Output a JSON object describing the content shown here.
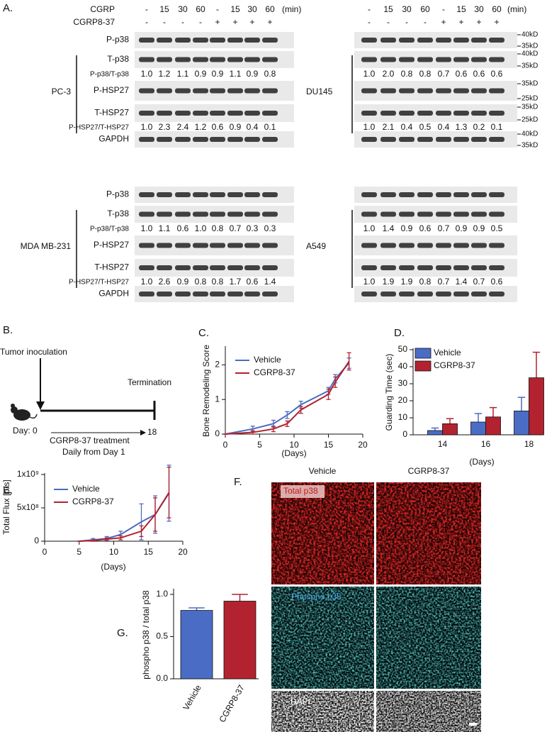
{
  "figure_a": {
    "label": "A.",
    "treatments": [
      {
        "name": "CGRP",
        "values": [
          "-",
          "15",
          "30",
          "60",
          "-",
          "15",
          "30",
          "60"
        ],
        "unit": "(min)"
      },
      {
        "name": "CGRP8-37",
        "values": [
          "-",
          "-",
          "-",
          "-",
          "+",
          "+",
          "+",
          "+"
        ]
      }
    ],
    "row_labels": [
      "P-p38",
      "T-p38",
      "P-p38/T-p38",
      "P-HSP27",
      "T-HSP27",
      "P-HSP27/T-HSP27",
      "GAPDH"
    ],
    "cell_lines": [
      {
        "name": "PC-3",
        "p38_ratio": [
          "1.0",
          "1.2",
          "1.1",
          "0.9",
          "0.9",
          "1.1",
          "0.9",
          "0.8"
        ],
        "hsp27_ratio": [
          "1.0",
          "2.3",
          "2.4",
          "1.2",
          "0.6",
          "0.9",
          "0.4",
          "0.1"
        ]
      },
      {
        "name": "DU145",
        "p38_ratio": [
          "1.0",
          "2.0",
          "0.8",
          "0.8",
          "0.7",
          "0.6",
          "0.6",
          "0.6"
        ],
        "hsp27_ratio": [
          "1.0",
          "2.1",
          "0.4",
          "0.5",
          "0.4",
          "1.3",
          "0.2",
          "0.1"
        ]
      },
      {
        "name": "MDA MB-231",
        "p38_ratio": [
          "1.0",
          "1.1",
          "0.6",
          "1.0",
          "0.8",
          "0.7",
          "0.3",
          "0.3"
        ],
        "hsp27_ratio": [
          "1.0",
          "2.6",
          "0.9",
          "0.8",
          "0.8",
          "1.7",
          "0.6",
          "1.4"
        ]
      },
      {
        "name": "A549",
        "p38_ratio": [
          "1.0",
          "1.4",
          "0.9",
          "0.6",
          "0.7",
          "0.9",
          "0.9",
          "0.5"
        ],
        "hsp27_ratio": [
          "1.0",
          "1.9",
          "1.9",
          "0.8",
          "0.7",
          "1.4",
          "0.7",
          "0.6"
        ]
      }
    ],
    "markers": [
      [
        "40kD",
        "35kD"
      ],
      [
        "40kD",
        "35kD"
      ],
      [
        "35kD",
        "25kD"
      ],
      [
        "35kD",
        "25kD"
      ],
      [
        "40kD",
        "35kD"
      ]
    ]
  },
  "figure_b": {
    "label": "B.",
    "start": "Tumor inoculation",
    "end": "Termination",
    "day_start": "Day: 0",
    "day_end": "18",
    "treatment": "CGRP8-37 treatment",
    "schedule": "Daily from Day 1"
  },
  "chart_data": [
    {
      "type": "line",
      "label": "C.",
      "ylabel": "Bone Remodeling Score",
      "xlabel": "(Days)",
      "x": [
        0,
        4,
        7,
        9,
        11,
        15,
        16,
        18
      ],
      "series": [
        {
          "name": "Vehicle",
          "color": "#4a6cc4",
          "values": [
            0,
            0.15,
            0.3,
            0.55,
            0.85,
            1.25,
            1.6,
            2.05
          ],
          "errors": [
            0,
            0.08,
            0.1,
            0.1,
            0.1,
            0.1,
            0.12,
            0.15
          ]
        },
        {
          "name": "CGRP8-37",
          "color": "#b3222f",
          "values": [
            0,
            0.05,
            0.15,
            0.3,
            0.7,
            1.15,
            1.5,
            2.1
          ],
          "errors": [
            0,
            0.05,
            0.08,
            0.08,
            0.1,
            0.15,
            0.15,
            0.25
          ]
        }
      ],
      "xlim": [
        0,
        20
      ],
      "xticks": [
        0,
        5,
        10,
        15,
        20
      ],
      "ylim": [
        0,
        2.5
      ],
      "yticks": [
        0,
        1,
        2
      ],
      "legend": "upper left"
    },
    {
      "type": "bar",
      "label": "D.",
      "ylabel": "Guarding Time (sec)",
      "xlabel": "(Days)",
      "categories": [
        "14",
        "16",
        "18"
      ],
      "series": [
        {
          "name": "Vehicle",
          "color": "#4a6cc4",
          "values": [
            2.5,
            7.5,
            14
          ],
          "errors": [
            1.5,
            5,
            8
          ]
        },
        {
          "name": "CGRP8-37",
          "color": "#b3222f",
          "values": [
            6.5,
            10.5,
            33.5
          ],
          "errors": [
            3,
            5.5,
            15
          ]
        }
      ],
      "ylim": [
        0,
        50
      ],
      "yticks": [
        0,
        10,
        20,
        30,
        40,
        50
      ],
      "legend": "upper left"
    },
    {
      "type": "line",
      "label": "E.",
      "ylabel": "Total Flux [p/s]",
      "xlabel": "(Days)",
      "x": [
        5,
        7,
        9,
        11,
        14,
        16,
        18
      ],
      "series": [
        {
          "name": "Vehicle",
          "color": "#4a6cc4",
          "values": [
            0,
            20000000,
            40000000,
            100000000,
            290000000,
            400000000,
            720000000
          ],
          "errors": [
            0,
            20000000,
            30000000,
            50000000,
            270000000,
            280000000,
            420000000
          ]
        },
        {
          "name": "CGRP8-37",
          "color": "#b3222f",
          "values": [
            0,
            10000000,
            30000000,
            50000000,
            150000000,
            400000000,
            730000000
          ],
          "errors": [
            0,
            10000000,
            20000000,
            30000000,
            80000000,
            250000000,
            380000000
          ]
        }
      ],
      "xlim": [
        0,
        20
      ],
      "xticks": [
        0,
        5,
        10,
        15,
        20
      ],
      "ylim": [
        0,
        1000000000
      ],
      "yticks": [
        0,
        {
          "value": 500000000,
          "label": "5x10⁸"
        },
        {
          "value": 1000000000,
          "label": "1x10⁹"
        }
      ],
      "legend": "upper left"
    },
    {
      "type": "bar",
      "label": "G.",
      "ylabel": "phospho p38 / total p38",
      "categories": [
        "Vehicle",
        "CGRP8-37"
      ],
      "values": [
        0.81,
        0.92
      ],
      "errors": [
        0.03,
        0.08
      ],
      "colors": [
        "#4a6cc4",
        "#b3222f"
      ],
      "ylim": [
        0,
        1.05
      ],
      "yticks": [
        {
          "value": 0,
          "label": "0.0"
        },
        {
          "value": 0.5,
          "label": "0.5"
        },
        {
          "value": 1,
          "label": "1.0"
        }
      ]
    }
  ],
  "figure_f": {
    "label": "F.",
    "columns": [
      "Vehicle",
      "CGRP8-37"
    ],
    "rows": [
      "Total p38",
      "Phospho p38",
      "DAPI"
    ]
  }
}
